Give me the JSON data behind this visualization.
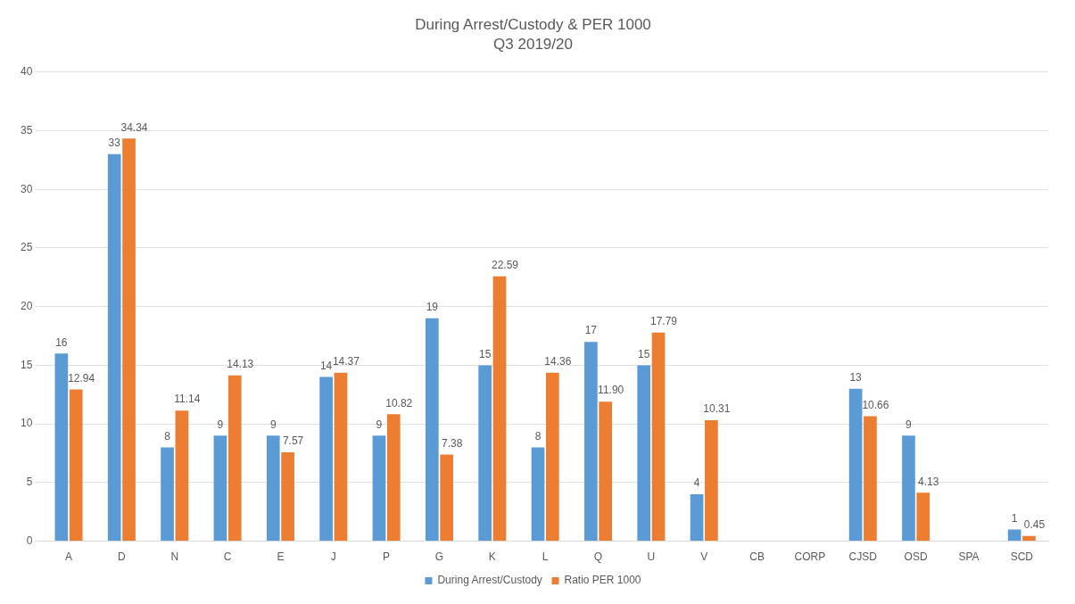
{
  "chart_data": {
    "type": "bar",
    "title": "During Arrest/Custody & PER 1000",
    "subtitle": "Q3 2019/20",
    "categories": [
      "A",
      "D",
      "N",
      "C",
      "E",
      "J",
      "P",
      "G",
      "K",
      "L",
      "Q",
      "U",
      "V",
      "CB",
      "CORP",
      "CJSD",
      "OSD",
      "SPA",
      "SCD"
    ],
    "series": [
      {
        "name": "During Arrest/Custody",
        "color": "#5b9bd5",
        "values": [
          16,
          33,
          8,
          9,
          9,
          14,
          9,
          19,
          15,
          8,
          17,
          15,
          4,
          null,
          null,
          13,
          9,
          null,
          1
        ],
        "value_labels": [
          "16",
          "33",
          "8",
          "9",
          "9",
          "14",
          "9",
          "19",
          "15",
          "8",
          "17",
          "15",
          "4",
          null,
          null,
          "13",
          "9",
          null,
          "1"
        ]
      },
      {
        "name": "Ratio PER 1000",
        "color": "#ed7d31",
        "values": [
          12.94,
          34.34,
          11.14,
          14.13,
          7.57,
          14.37,
          10.82,
          7.38,
          22.59,
          14.36,
          11.9,
          17.79,
          10.31,
          null,
          null,
          10.66,
          4.13,
          null,
          0.45
        ],
        "value_labels": [
          "12.94",
          "34.34",
          "11.14",
          "14.13",
          "7.57",
          "14.37",
          "10.82",
          "7.38",
          "22.59",
          "14.36",
          "11.90",
          "17.79",
          "10.31",
          null,
          null,
          "10.66",
          "4.13",
          null,
          "0.45"
        ]
      }
    ],
    "ylim": [
      0,
      40
    ],
    "yticks": [
      0,
      5,
      10,
      15,
      20,
      25,
      30,
      35,
      40
    ],
    "grid": "y",
    "legend": "bottom"
  }
}
